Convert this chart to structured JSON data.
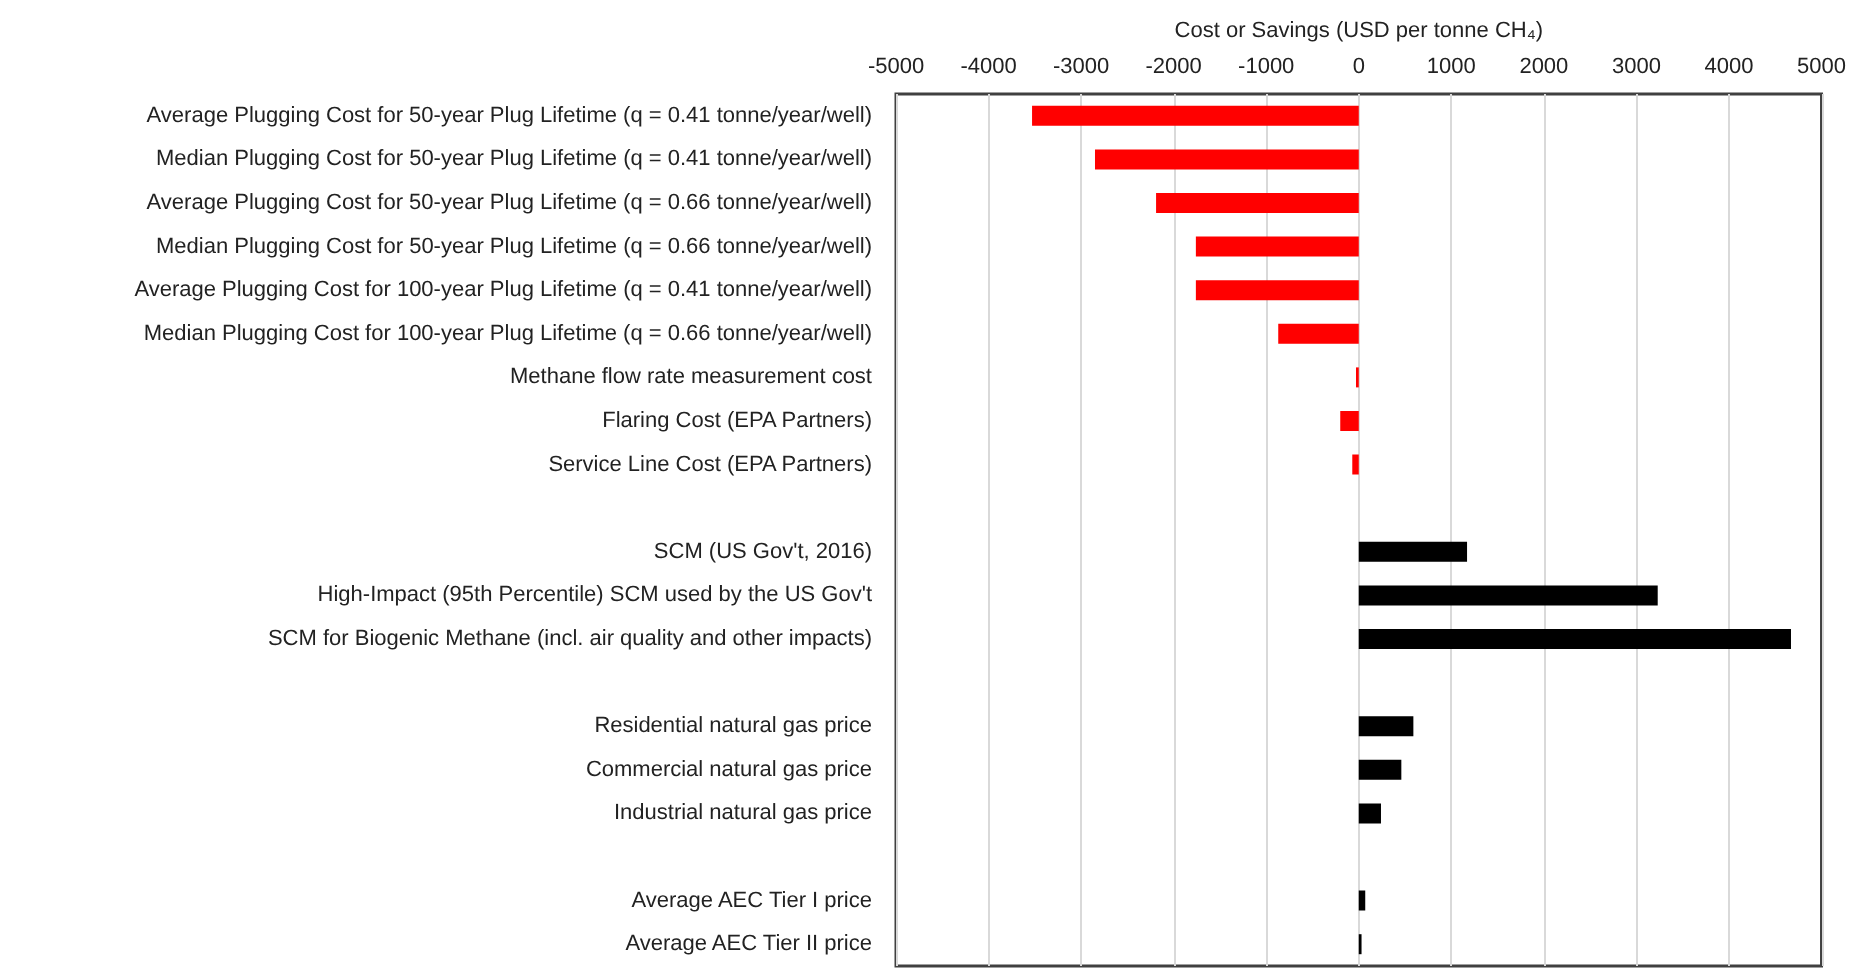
{
  "chart_data": {
    "type": "bar",
    "orientation": "horizontal",
    "xlabel": "Cost or Savings (USD per tonne CH₄)",
    "categories": [
      "Average Plugging Cost for 50-year Plug Lifetime (q = 0.41 tonne/year/well)",
      "Median Plugging Cost for 50-year Plug Lifetime (q = 0.41 tonne/year/well)",
      "Average Plugging Cost for 50-year Plug Lifetime (q = 0.66 tonne/year/well)",
      "Median Plugging Cost for 50-year Plug Lifetime (q = 0.66 tonne/year/well)",
      "Average Plugging Cost for 100-year Plug Lifetime (q = 0.41 tonne/year/well)",
      "Median Plugging Cost for 100-year Plug Lifetime (q = 0.66 tonne/year/well)",
      "Methane flow rate measurement cost",
      "Flaring Cost (EPA Partners)",
      "Service Line Cost (EPA Partners)",
      null,
      "SCM (US Gov't, 2016)",
      "High-Impact (95th Percentile) SCM used by the US Gov't",
      "SCM for Biogenic Methane (incl. air quality and other impacts)",
      null,
      "Residential natural gas price",
      "Commercial natural gas price",
      "Industrial natural gas price",
      null,
      "Average AEC Tier I price",
      "Average AEC Tier II price"
    ],
    "series": [
      {
        "color": "#ff0000",
        "values": [
          -3530,
          -2850,
          -2190,
          -1760,
          -1760,
          -870,
          -30,
          -200,
          -70,
          null,
          null,
          null,
          null,
          null,
          null,
          null,
          null,
          null,
          null,
          null
        ]
      },
      {
        "color": "#000000",
        "values": [
          null,
          null,
          null,
          null,
          null,
          null,
          null,
          null,
          null,
          null,
          1170,
          3230,
          4670,
          null,
          590,
          460,
          240,
          null,
          70,
          30
        ]
      }
    ],
    "xlim": [
      -5000,
      5000
    ],
    "xticks": [
      -5000,
      -4000,
      -3000,
      -2000,
      -1000,
      0,
      1000,
      2000,
      3000,
      4000,
      5000
    ],
    "grid": "x"
  }
}
